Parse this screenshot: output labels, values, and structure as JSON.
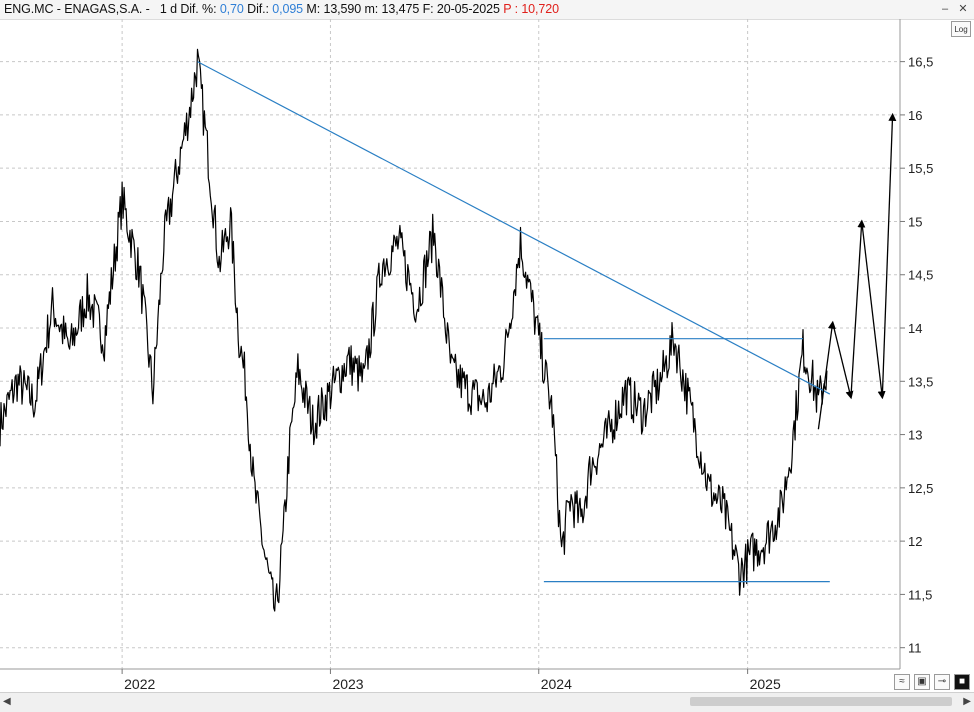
{
  "header": {
    "symbol": "ENG.MC - ENAGAS,S.A. -",
    "period": "1 d",
    "dif_pct_label": "Dif. %:",
    "dif_pct_value": "0,70",
    "dif_label": "Dif.:",
    "dif_value": "0,095",
    "max_label": "M:",
    "max_value": "13,590",
    "min_label": "m:",
    "min_value": "13,475",
    "date_label": "F:",
    "date_value": "20-05-2025",
    "p_label": "P :",
    "p_value": "10,720"
  },
  "controls": {
    "log_label": "Log",
    "minimize_glyph": "‒",
    "close_glyph": "✕",
    "scroll_left_glyph": "◀",
    "scroll_right_glyph": "▶",
    "tool_icons": [
      "wave-icon",
      "save-icon",
      "pin-icon",
      "square-icon"
    ]
  },
  "colors": {
    "price": "#000000",
    "trendline": "#2a7fc4",
    "grid": "#c8c8c8",
    "projection": "#000000"
  },
  "chart_data": {
    "type": "line",
    "title": "",
    "xlabel": "",
    "ylabel": "",
    "grid": true,
    "ylim": [
      10.8,
      16.9
    ],
    "xlim": [
      "2021-06-01",
      "2025-09-25"
    ],
    "x_ticks": [
      "2022",
      "2023",
      "2024",
      "2025"
    ],
    "y_ticks": [
      "11",
      "11,5",
      "12",
      "12,5",
      "13",
      "13,5",
      "14",
      "14,5",
      "15",
      "15,5",
      "16",
      "16,5"
    ],
    "series": [
      {
        "x": [
          "2021-06-01",
          "2021-07-01",
          "2021-08-01",
          "2021-09-01",
          "2021-10-01",
          "2021-11-01",
          "2021-12-01",
          "2022-01-01",
          "2022-02-01",
          "2022-02-24",
          "2022-03-15",
          "2022-04-01",
          "2022-05-01",
          "2022-05-13",
          "2022-06-01",
          "2022-06-20",
          "2022-07-10",
          "2022-07-25",
          "2022-08-05",
          "2022-08-20",
          "2022-09-10",
          "2022-09-27",
          "2022-10-10",
          "2022-10-20",
          "2022-11-05",
          "2022-12-01",
          "2023-01-01",
          "2023-02-01",
          "2023-03-01",
          "2023-04-01",
          "2023-05-01",
          "2023-06-01",
          "2023-07-01",
          "2023-08-01",
          "2023-09-01",
          "2023-10-01",
          "2023-11-01",
          "2023-11-30",
          "2024-01-01",
          "2024-01-25",
          "2024-02-10",
          "2024-02-25",
          "2024-03-15",
          "2024-04-01",
          "2024-05-01",
          "2024-06-01",
          "2024-07-01",
          "2024-08-01",
          "2024-08-25",
          "2024-09-25",
          "2024-10-25",
          "2024-11-20",
          "2024-12-18",
          "2025-01-10",
          "2025-02-01",
          "2025-03-01",
          "2025-03-20",
          "2025-04-08",
          "2025-04-25",
          "2025-05-05",
          "2025-05-20"
        ],
        "values": [
          13.1,
          13.5,
          13.3,
          14.2,
          13.8,
          14.3,
          13.9,
          15.2,
          14.5,
          13.4,
          14.8,
          15.3,
          16.1,
          16.5,
          15.6,
          14.6,
          15.0,
          13.9,
          13.5,
          12.5,
          11.8,
          11.3,
          12.0,
          12.8,
          13.6,
          13.1,
          13.4,
          13.7,
          13.5,
          14.6,
          14.8,
          14.2,
          14.9,
          13.6,
          13.4,
          13.3,
          13.7,
          14.8,
          13.9,
          13.2,
          11.9,
          12.4,
          12.2,
          12.7,
          13.0,
          13.4,
          13.2,
          13.5,
          13.9,
          13.2,
          12.5,
          12.3,
          11.7,
          11.9,
          12.0,
          12.3,
          12.9,
          13.8,
          13.5,
          13.3,
          13.6
        ]
      }
    ],
    "trendline": {
      "from": [
        "2022-05-13",
        16.5
      ],
      "to": [
        "2025-05-25",
        13.38
      ]
    },
    "resistance_line": {
      "from": [
        "2024-01-10",
        13.9
      ],
      "to": [
        "2025-04-08",
        13.9
      ]
    },
    "support_line": {
      "from": [
        "2024-01-10",
        11.62
      ],
      "to": [
        "2025-05-25",
        11.62
      ]
    },
    "projection": [
      [
        "2025-05-05",
        13.05
      ],
      [
        "2025-05-30",
        14.05
      ],
      [
        "2025-07-01",
        13.35
      ],
      [
        "2025-07-20",
        15.0
      ],
      [
        "2025-08-25",
        13.35
      ],
      [
        "2025-09-12",
        16.0
      ]
    ]
  }
}
